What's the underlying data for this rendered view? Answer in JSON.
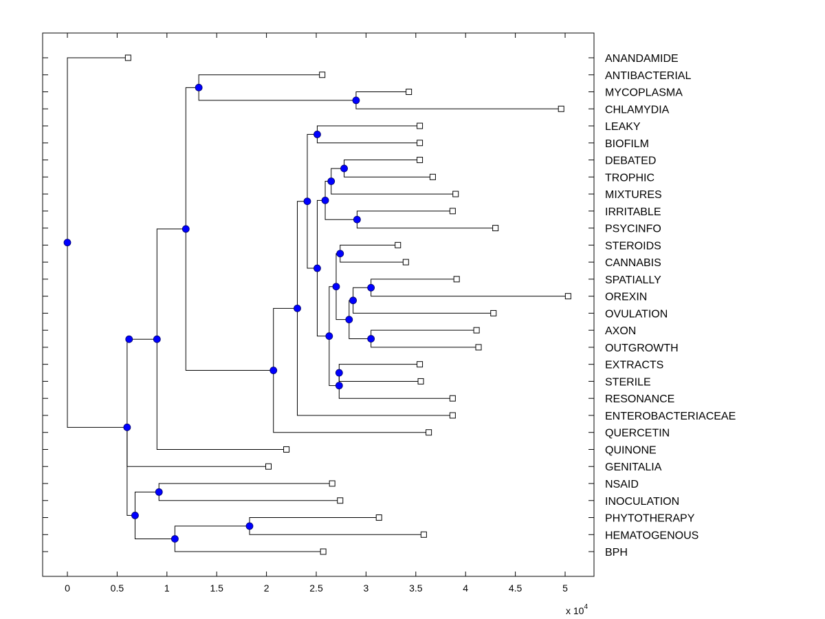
{
  "chart_data": {
    "type": "dendrogram",
    "title": "",
    "xlabel": "",
    "ylabel": "",
    "x_exponent_label": {
      "base": "x 10",
      "exponent": "4"
    },
    "xlim": [
      -0.25,
      5.3
    ],
    "xticks": [
      0,
      0.5,
      1,
      1.5,
      2,
      2.5,
      3,
      3.5,
      4,
      4.5,
      5
    ],
    "xtick_labels": [
      "0",
      "0.5",
      "1",
      "1.5",
      "2",
      "2.5",
      "3",
      "3.5",
      "4",
      "4.5",
      "5"
    ],
    "grid": false,
    "colors": {
      "internal_node": "#0000ff",
      "leaf_node": "#ffffff",
      "lines": "#000000"
    },
    "leaves": [
      {
        "label": "ANANDAMIDE",
        "x": 0.61
      },
      {
        "label": "ANTIBACTERIAL",
        "x": 2.56
      },
      {
        "label": "MYCOPLASMA",
        "x": 3.43
      },
      {
        "label": "CHLAMYDIA",
        "x": 4.96
      },
      {
        "label": "LEAKY",
        "x": 3.54
      },
      {
        "label": "BIOFILM",
        "x": 3.54
      },
      {
        "label": "DEBATED",
        "x": 3.54
      },
      {
        "label": "TROPHIC",
        "x": 3.67
      },
      {
        "label": "MIXTURES",
        "x": 3.9
      },
      {
        "label": "IRRITABLE",
        "x": 3.87
      },
      {
        "label": "PSYCINFO",
        "x": 4.3
      },
      {
        "label": "STEROIDS",
        "x": 3.32
      },
      {
        "label": "CANNABIS",
        "x": 3.4
      },
      {
        "label": "SPATIALLY",
        "x": 3.91
      },
      {
        "label": "OREXIN",
        "x": 5.03
      },
      {
        "label": "OVULATION",
        "x": 4.28
      },
      {
        "label": "AXON",
        "x": 4.11
      },
      {
        "label": "OUTGROWTH",
        "x": 4.13
      },
      {
        "label": "EXTRACTS",
        "x": 3.54
      },
      {
        "label": "STERILE",
        "x": 3.55
      },
      {
        "label": "RESONANCE",
        "x": 3.87
      },
      {
        "label": "ENTEROBACTERIACEAE",
        "x": 3.87
      },
      {
        "label": "QUERCETIN",
        "x": 3.63
      },
      {
        "label": "QUINONE",
        "x": 2.2
      },
      {
        "label": "GENITALIA",
        "x": 2.02
      },
      {
        "label": "NSAID",
        "x": 2.66
      },
      {
        "label": "INOCULATION",
        "x": 2.74
      },
      {
        "label": "PHYTOTHERAPY",
        "x": 3.13
      },
      {
        "label": "HEMATOGENOUS",
        "x": 3.58
      },
      {
        "label": "BPH",
        "x": 2.57
      }
    ],
    "nodes": [
      {
        "id": "root",
        "x": 0.0,
        "children": [
          "L0",
          "n_gen"
        ]
      },
      {
        "id": "n_gen",
        "x": 0.6,
        "children": [
          "n_g1",
          "L24",
          "n_low"
        ]
      },
      {
        "id": "n_g1",
        "x": 0.62,
        "children": [
          "n_quin"
        ]
      },
      {
        "id": "n_quin",
        "x": 0.9,
        "children": [
          "n_top",
          "L23"
        ]
      },
      {
        "id": "n_top",
        "x": 1.19,
        "children": [
          "n_am",
          "n_quer"
        ]
      },
      {
        "id": "n_am",
        "x": 1.32,
        "children": [
          "L1",
          "n_mc"
        ]
      },
      {
        "id": "n_mc",
        "x": 2.9,
        "children": [
          "L2",
          "L3"
        ]
      },
      {
        "id": "n_quer",
        "x": 2.07,
        "children": [
          "n_ent",
          "L22"
        ]
      },
      {
        "id": "n_ent",
        "x": 2.31,
        "children": [
          "n_lbset",
          "L21"
        ]
      },
      {
        "id": "n_lbset",
        "x": 2.41,
        "children": [
          "n_lb",
          "n_big"
        ]
      },
      {
        "id": "n_lb",
        "x": 2.51,
        "children": [
          "L4",
          "L5"
        ]
      },
      {
        "id": "n_big",
        "x": 2.51,
        "children": [
          "n_dtmip",
          "n_mid"
        ]
      },
      {
        "id": "n_dtmip",
        "x": 2.59,
        "children": [
          "n_dtm",
          "n_ip"
        ]
      },
      {
        "id": "n_dtm",
        "x": 2.65,
        "children": [
          "n_dt",
          "L8"
        ]
      },
      {
        "id": "n_dt",
        "x": 2.78,
        "children": [
          "L6",
          "L7"
        ]
      },
      {
        "id": "n_ip",
        "x": 2.91,
        "children": [
          "L9",
          "L10"
        ]
      },
      {
        "id": "n_mid",
        "x": 2.63,
        "children": [
          "n_scr",
          "n_esr"
        ]
      },
      {
        "id": "n_scr",
        "x": 2.7,
        "children": [
          "n_sc",
          "n_soao"
        ]
      },
      {
        "id": "n_sc",
        "x": 2.74,
        "children": [
          "L11",
          "L12"
        ]
      },
      {
        "id": "n_soao",
        "x": 2.83,
        "children": [
          "n_sov",
          "n_ao"
        ]
      },
      {
        "id": "n_sov",
        "x": 2.87,
        "children": [
          "n_so",
          "L15"
        ]
      },
      {
        "id": "n_so",
        "x": 3.05,
        "children": [
          "L13",
          "L14"
        ]
      },
      {
        "id": "n_ao",
        "x": 3.05,
        "children": [
          "L16",
          "L17"
        ]
      },
      {
        "id": "n_esr",
        "x": 2.73,
        "children": [
          "n_es",
          "L20"
        ]
      },
      {
        "id": "n_es",
        "x": 2.73,
        "children": [
          "L18",
          "L19"
        ]
      },
      {
        "id": "n_low",
        "x": 0.68,
        "children": [
          "n_ni",
          "n_phb"
        ]
      },
      {
        "id": "n_ni",
        "x": 0.92,
        "children": [
          "L25",
          "L26"
        ]
      },
      {
        "id": "n_phb",
        "x": 1.08,
        "children": [
          "n_ph",
          "L29"
        ]
      },
      {
        "id": "n_ph",
        "x": 1.83,
        "children": [
          "L27",
          "L28"
        ]
      }
    ]
  }
}
